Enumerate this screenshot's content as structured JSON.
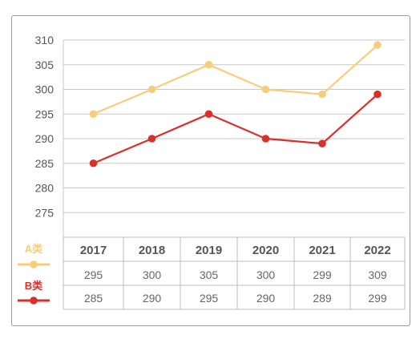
{
  "chart_data": {
    "type": "line",
    "categories": [
      "2017",
      "2018",
      "2019",
      "2020",
      "2021",
      "2022"
    ],
    "series": [
      {
        "name": "A类",
        "values": [
          295,
          300,
          305,
          300,
          299,
          309
        ],
        "color": "#f8cd7a"
      },
      {
        "name": "B类",
        "values": [
          285,
          290,
          295,
          290,
          289,
          299
        ],
        "color": "#d9302a"
      }
    ],
    "yticks": [
      275,
      280,
      285,
      290,
      295,
      300,
      305,
      310
    ],
    "ylim": [
      270,
      310
    ],
    "grid": true,
    "legend": "left of data table"
  }
}
